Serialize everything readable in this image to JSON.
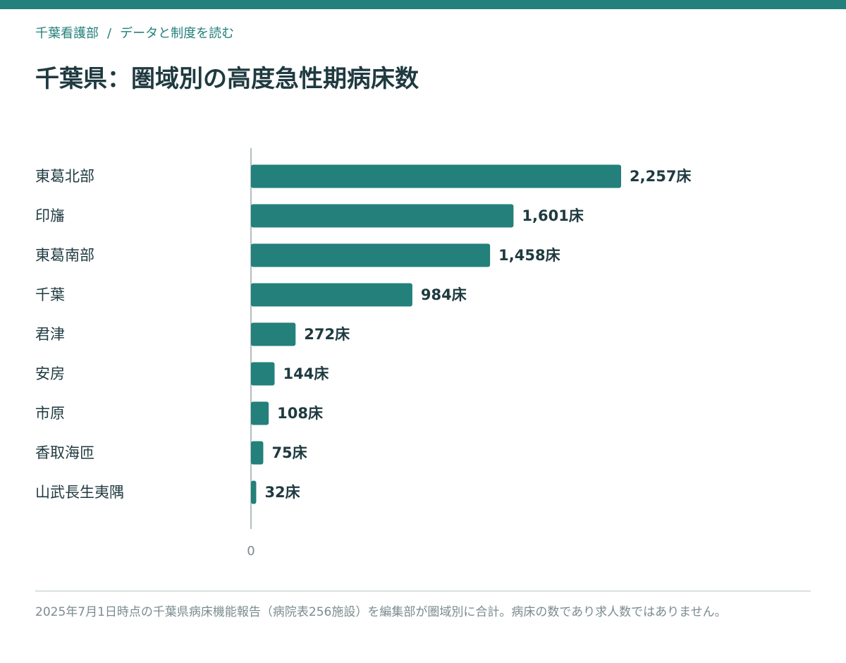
{
  "breadcrumb": {
    "parent": "千葉看護部",
    "separator": "/",
    "current": "データと制度を読む"
  },
  "title": "千葉県：圏域別の高度急性期病床数",
  "chart_data": {
    "type": "bar",
    "orientation": "horizontal",
    "categories": [
      "東葛北部",
      "印旛",
      "東葛南部",
      "千葉",
      "君津",
      "安房",
      "市原",
      "香取海匝",
      "山武長生夷隅"
    ],
    "values": [
      2257,
      1601,
      1458,
      984,
      272,
      144,
      108,
      75,
      32
    ],
    "value_labels": [
      "2,257床",
      "1,601床",
      "1,458床",
      "984床",
      "272床",
      "144床",
      "108床",
      "75床",
      "32床"
    ],
    "unit": "床",
    "x_tick_labels": [
      "0"
    ],
    "xlim": [
      0,
      2257
    ],
    "bar_color": "#23807a",
    "grid": false,
    "legend": "none"
  },
  "footnote": "2025年7月1日時点の千葉県病床機能報告（病院表256施設）を編集部が圏域別に合計。病床の数であり求人数ではありません。"
}
